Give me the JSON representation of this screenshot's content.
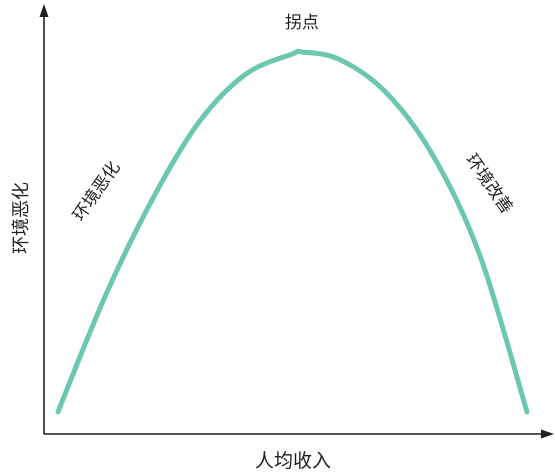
{
  "chart_data": {
    "type": "line",
    "title": "",
    "xlabel": "人均收入",
    "ylabel": "环境恶化",
    "xlim": [
      0,
      100
    ],
    "ylim": [
      0,
      100
    ],
    "grid": false,
    "legend": "none",
    "series": [
      {
        "x": [
          0,
          10,
          20,
          30,
          40,
          50,
          52,
          60,
          70,
          80,
          90,
          100
        ],
        "y": [
          3,
          34,
          60,
          81,
          94,
          99.5,
          100,
          98,
          89,
          72,
          45,
          3
        ],
        "color": "#6cc7b0"
      }
    ],
    "annotations": [
      {
        "text": "拐点",
        "x": 52,
        "y": 100
      },
      {
        "text": "环境恶化",
        "x": 16,
        "y": 60,
        "rotate": -55
      },
      {
        "text": "环境改善",
        "x": 85,
        "y": 62,
        "rotate": 55
      }
    ]
  }
}
